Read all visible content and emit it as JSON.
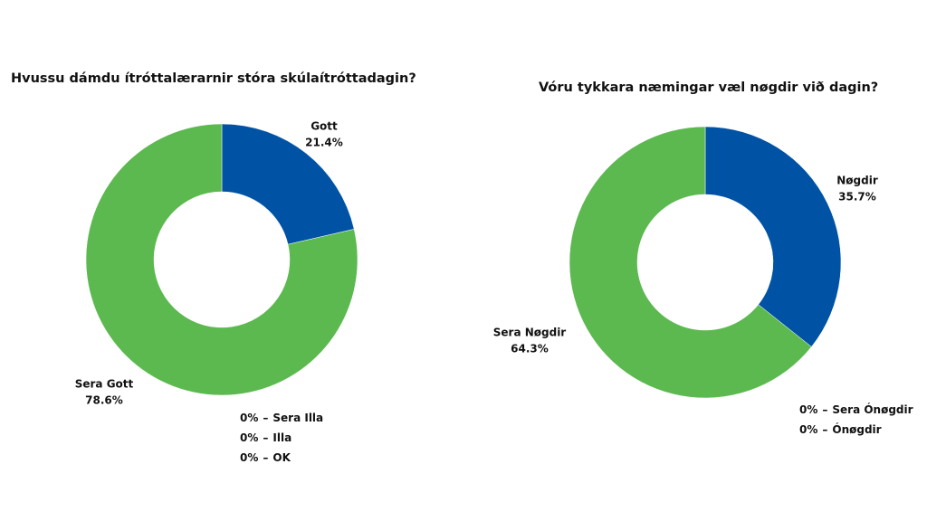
{
  "chart_data": [
    {
      "type": "donut",
      "title": "Hvussu dámdu ítróttalærarnir stóra skúlaítróttadagin?",
      "categories": [
        "Gott",
        "Sera Gott",
        "Sera Illa",
        "Illa",
        "OK"
      ],
      "values": [
        21.4,
        78.6,
        0,
        0,
        0
      ],
      "value_labels": [
        "21.4%",
        "78.6%",
        "0%",
        "0%",
        "0%"
      ],
      "colors": [
        "#0052a5",
        "#5cb94f",
        "#e0e0e0",
        "#e0e0e0",
        "#e0e0e0"
      ],
      "zero_separator": "–"
    },
    {
      "type": "donut",
      "title": "Vóru tykkara næmingar væl nøgdir við dagin?",
      "categories": [
        "Nøgdir",
        "Sera Nøgdir",
        "Sera Ónøgdir",
        "Ónøgdir"
      ],
      "values": [
        35.7,
        64.3,
        0,
        0
      ],
      "value_labels": [
        "35.7%",
        "64.3%",
        "0%",
        "0%"
      ],
      "colors": [
        "#0052a5",
        "#5cb94f",
        "#e0e0e0",
        "#e0e0e0"
      ],
      "zero_separator": "–"
    }
  ]
}
